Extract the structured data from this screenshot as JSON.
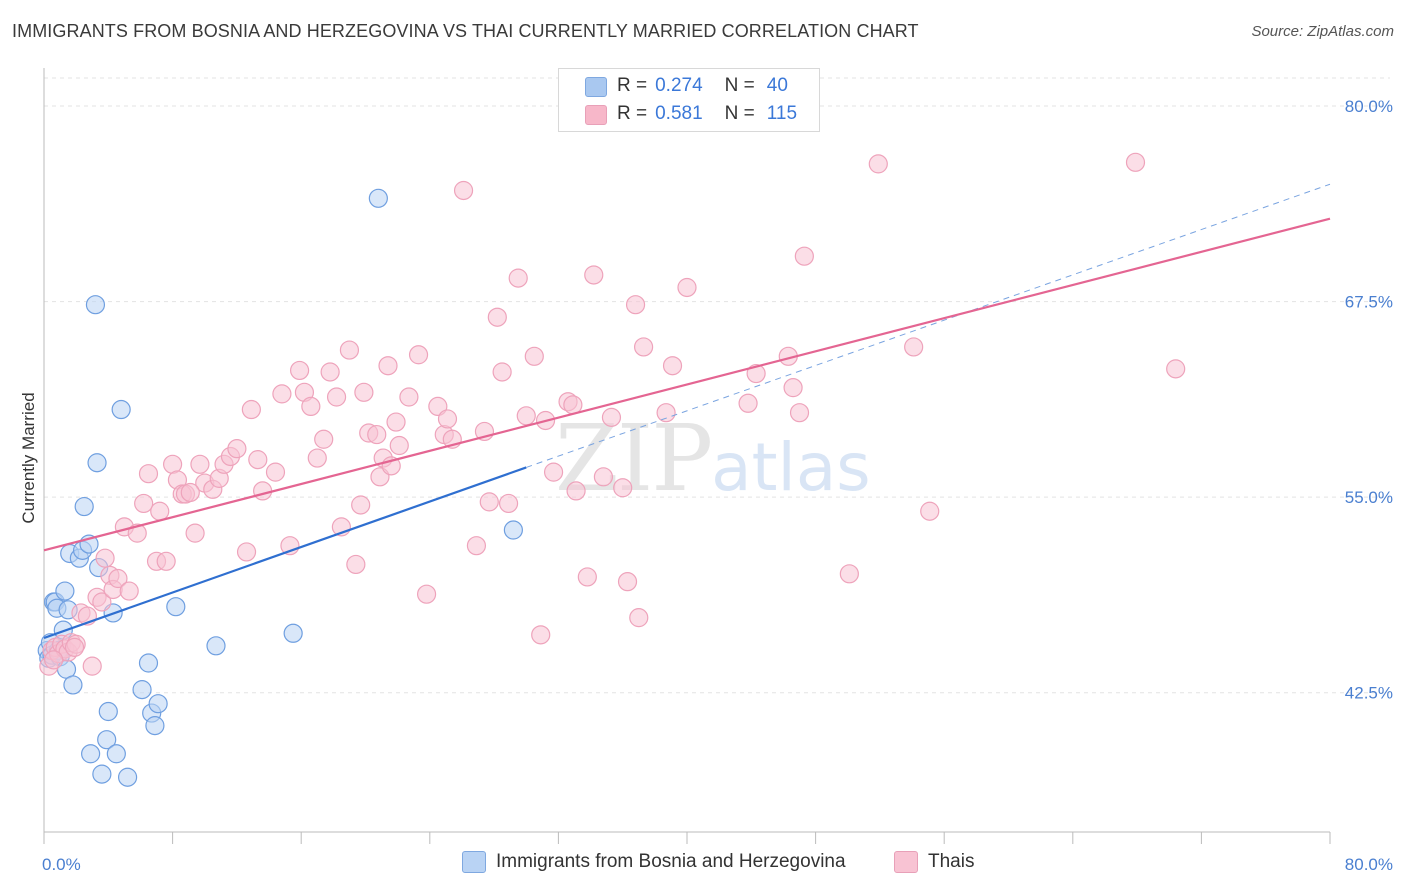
{
  "title": "IMMIGRANTS FROM BOSNIA AND HERZEGOVINA VS THAI CURRENTLY MARRIED CORRELATION CHART",
  "source": "Source: ZipAtlas.com",
  "watermark": {
    "zip": "ZIP",
    "atlas": "atlas"
  },
  "legend": {
    "rows": [
      {
        "key": "R =",
        "r": "0.274",
        "nkey": "N =",
        "n": "40",
        "color": "#a9c8f0"
      },
      {
        "key": "R =",
        "r": "0.581",
        "nkey": "N =",
        "n": "115",
        "color": "#f7b7c9"
      }
    ]
  },
  "bottom_legend": [
    {
      "label": "Immigrants from Bosnia and Herzegovina",
      "color": "#b9d3f4"
    },
    {
      "label": "Thais",
      "color": "#f8c3d3"
    }
  ],
  "chart_data": {
    "type": "scatter",
    "ylabel": "Currently Married",
    "xlim": [
      0,
      80
    ],
    "ylim": [
      33.6,
      82.3
    ],
    "y_ticks": [
      {
        "value": 80.0,
        "label": "80.0%"
      },
      {
        "value": 67.5,
        "label": "67.5%"
      },
      {
        "value": 55.0,
        "label": "55.0%"
      },
      {
        "value": 42.5,
        "label": "42.5%"
      }
    ],
    "x_tick_labels": [
      {
        "value": 0,
        "label": "0.0%"
      },
      {
        "value": 80,
        "label": "80.0%"
      }
    ],
    "series": [
      {
        "name": "Immigrants from Bosnia and Herzegovina",
        "color": "#4a86d8",
        "fill": "#b9d3f4",
        "R": 0.274,
        "N": 40,
        "trend": {
          "x": [
            0,
            30
          ],
          "y": [
            46.0,
            56.9
          ],
          "extended_to": [
            80,
            75.0
          ]
        },
        "points": [
          [
            0.2,
            45.2
          ],
          [
            0.3,
            44.7
          ],
          [
            0.4,
            45.7
          ],
          [
            0.5,
            44.9
          ],
          [
            0.6,
            48.3
          ],
          [
            0.7,
            48.3
          ],
          [
            0.8,
            47.9
          ],
          [
            0.9,
            45.2
          ],
          [
            1.0,
            44.8
          ],
          [
            1.2,
            46.5
          ],
          [
            1.3,
            49.0
          ],
          [
            1.4,
            44.0
          ],
          [
            1.5,
            47.8
          ],
          [
            1.6,
            51.4
          ],
          [
            1.8,
            43.0
          ],
          [
            2.2,
            51.1
          ],
          [
            2.4,
            51.6
          ],
          [
            2.5,
            54.4
          ],
          [
            2.8,
            52.0
          ],
          [
            2.9,
            38.6
          ],
          [
            3.2,
            67.3
          ],
          [
            3.3,
            57.2
          ],
          [
            3.4,
            50.5
          ],
          [
            3.6,
            37.3
          ],
          [
            3.9,
            39.5
          ],
          [
            4.0,
            41.3
          ],
          [
            4.3,
            47.6
          ],
          [
            4.5,
            38.6
          ],
          [
            4.8,
            60.6
          ],
          [
            5.2,
            37.1
          ],
          [
            6.1,
            42.7
          ],
          [
            6.5,
            44.4
          ],
          [
            6.7,
            41.2
          ],
          [
            6.9,
            40.4
          ],
          [
            7.1,
            41.8
          ],
          [
            8.2,
            48.0
          ],
          [
            10.7,
            45.5
          ],
          [
            15.5,
            46.3
          ],
          [
            20.8,
            74.1
          ],
          [
            29.2,
            52.9
          ]
        ]
      },
      {
        "name": "Thais",
        "color": "#e46592",
        "fill": "#f8c3d3",
        "R": 0.581,
        "N": 115,
        "trend": {
          "x": [
            0,
            80
          ],
          "y": [
            51.6,
            72.8
          ]
        },
        "points": [
          [
            0.3,
            44.2
          ],
          [
            0.5,
            45.2
          ],
          [
            0.7,
            45.4
          ],
          [
            0.9,
            45.0
          ],
          [
            1.1,
            45.6
          ],
          [
            1.3,
            45.3
          ],
          [
            1.5,
            45.1
          ],
          [
            1.7,
            45.7
          ],
          [
            2.0,
            45.6
          ],
          [
            2.3,
            47.6
          ],
          [
            2.7,
            47.4
          ],
          [
            3.0,
            44.2
          ],
          [
            3.3,
            48.6
          ],
          [
            3.6,
            48.3
          ],
          [
            3.8,
            51.1
          ],
          [
            4.1,
            50.0
          ],
          [
            4.3,
            49.1
          ],
          [
            4.6,
            49.8
          ],
          [
            5.0,
            53.1
          ],
          [
            5.3,
            49.0
          ],
          [
            5.8,
            52.7
          ],
          [
            6.2,
            54.6
          ],
          [
            6.5,
            56.5
          ],
          [
            7.0,
            50.9
          ],
          [
            7.2,
            54.1
          ],
          [
            7.6,
            50.9
          ],
          [
            8.0,
            57.1
          ],
          [
            8.3,
            56.1
          ],
          [
            8.6,
            55.2
          ],
          [
            8.8,
            55.2
          ],
          [
            9.4,
            52.7
          ],
          [
            9.7,
            57.1
          ],
          [
            10.0,
            55.9
          ],
          [
            10.5,
            55.5
          ],
          [
            10.9,
            56.2
          ],
          [
            11.2,
            57.1
          ],
          [
            11.6,
            57.6
          ],
          [
            12.0,
            58.1
          ],
          [
            12.6,
            51.5
          ],
          [
            12.9,
            60.6
          ],
          [
            13.3,
            57.4
          ],
          [
            13.6,
            55.4
          ],
          [
            14.4,
            56.6
          ],
          [
            14.8,
            61.6
          ],
          [
            15.3,
            51.9
          ],
          [
            15.9,
            63.1
          ],
          [
            16.2,
            61.7
          ],
          [
            16.6,
            60.8
          ],
          [
            17.0,
            57.5
          ],
          [
            17.4,
            58.7
          ],
          [
            17.8,
            63.0
          ],
          [
            18.2,
            61.4
          ],
          [
            18.5,
            53.1
          ],
          [
            19.0,
            64.4
          ],
          [
            19.4,
            50.7
          ],
          [
            19.7,
            54.5
          ],
          [
            19.9,
            61.7
          ],
          [
            20.2,
            59.1
          ],
          [
            20.7,
            59.0
          ],
          [
            20.9,
            56.3
          ],
          [
            21.1,
            57.5
          ],
          [
            21.4,
            63.4
          ],
          [
            21.6,
            57.0
          ],
          [
            21.9,
            59.8
          ],
          [
            22.1,
            58.3
          ],
          [
            22.7,
            61.4
          ],
          [
            23.3,
            64.1
          ],
          [
            23.8,
            48.8
          ],
          [
            24.5,
            60.8
          ],
          [
            24.9,
            59.0
          ],
          [
            25.1,
            60.0
          ],
          [
            25.4,
            58.7
          ],
          [
            26.1,
            74.6
          ],
          [
            26.9,
            51.9
          ],
          [
            27.4,
            59.2
          ],
          [
            27.7,
            54.7
          ],
          [
            28.2,
            66.5
          ],
          [
            28.5,
            63.0
          ],
          [
            28.9,
            54.6
          ],
          [
            29.5,
            69.0
          ],
          [
            30.0,
            60.2
          ],
          [
            30.5,
            64.0
          ],
          [
            30.9,
            46.2
          ],
          [
            31.2,
            59.9
          ],
          [
            31.7,
            56.6
          ],
          [
            32.6,
            61.1
          ],
          [
            32.9,
            60.9
          ],
          [
            33.1,
            55.4
          ],
          [
            33.8,
            49.9
          ],
          [
            34.2,
            69.2
          ],
          [
            34.8,
            56.3
          ],
          [
            35.3,
            60.1
          ],
          [
            36.0,
            55.6
          ],
          [
            36.3,
            49.6
          ],
          [
            36.8,
            67.3
          ],
          [
            37.0,
            47.3
          ],
          [
            37.3,
            64.6
          ],
          [
            38.7,
            60.4
          ],
          [
            39.1,
            63.4
          ],
          [
            40.0,
            68.4
          ],
          [
            43.8,
            61.0
          ],
          [
            44.3,
            62.9
          ],
          [
            46.3,
            64.0
          ],
          [
            46.6,
            62.0
          ],
          [
            47.0,
            60.4
          ],
          [
            47.3,
            70.4
          ],
          [
            50.1,
            50.1
          ],
          [
            51.9,
            76.3
          ],
          [
            54.1,
            64.6
          ],
          [
            55.1,
            54.1
          ],
          [
            67.9,
            76.4
          ],
          [
            70.4,
            63.2
          ],
          [
            0.6,
            44.6
          ],
          [
            1.9,
            45.4
          ],
          [
            9.1,
            55.3
          ]
        ]
      }
    ]
  }
}
